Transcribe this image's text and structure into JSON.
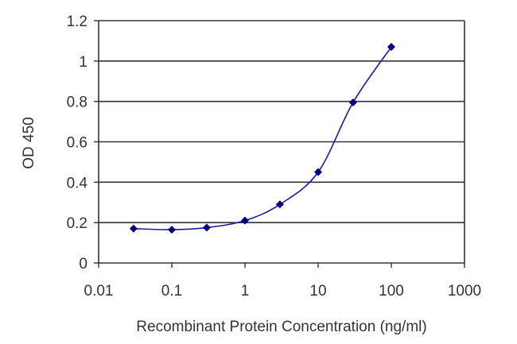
{
  "chart_data": {
    "type": "line",
    "title": "",
    "xlabel": "Recombinant Protein Concentration (ng/ml)",
    "ylabel": "OD 450",
    "xscale": "log",
    "xlim": [
      0.01,
      1000
    ],
    "ylim": [
      0,
      1.2
    ],
    "xticks": [
      "0.01",
      "0.1",
      "1",
      "10",
      "100",
      "1000"
    ],
    "yticks": [
      "0",
      "0.2",
      "0.4",
      "0.6",
      "0.8",
      "1",
      "1.2"
    ],
    "grid": "horizontal",
    "series": [
      {
        "x": [
          0.03,
          0.1,
          0.3,
          1,
          3,
          10,
          30,
          100
        ],
        "y": [
          0.17,
          0.165,
          0.175,
          0.21,
          0.29,
          0.45,
          0.795,
          1.07
        ]
      }
    ],
    "colors": {
      "series": "#1a1a99",
      "marker": "#000080",
      "grid": "#333333",
      "axis": "#333333"
    }
  }
}
